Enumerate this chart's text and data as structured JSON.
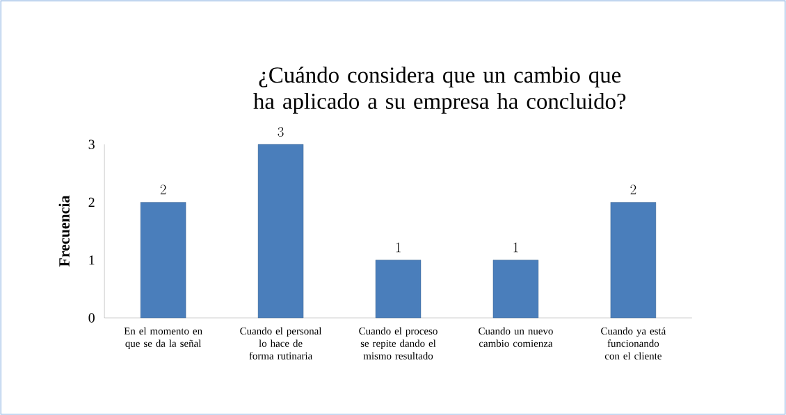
{
  "chart_data": {
    "type": "bar",
    "title": "¿Cuándo considera que un cambio que ha aplicado a su empresa ha concluido?",
    "ylabel": "Frecuencia",
    "categories": [
      "En el momento en que se da la señal",
      "Cuando el personal lo hace de forma rutinaria",
      "Cuando el proceso se repite dando el mismo resultado",
      "Cuando un nuevo cambio comienza",
      "Cuando ya está funcionando con el cliente"
    ],
    "values": [
      2,
      3,
      1,
      1,
      2
    ],
    "color": "#4a7ebb",
    "ylim": [
      0,
      3
    ],
    "yticks": [
      0,
      1,
      2,
      3
    ],
    "data_labels": true
  }
}
